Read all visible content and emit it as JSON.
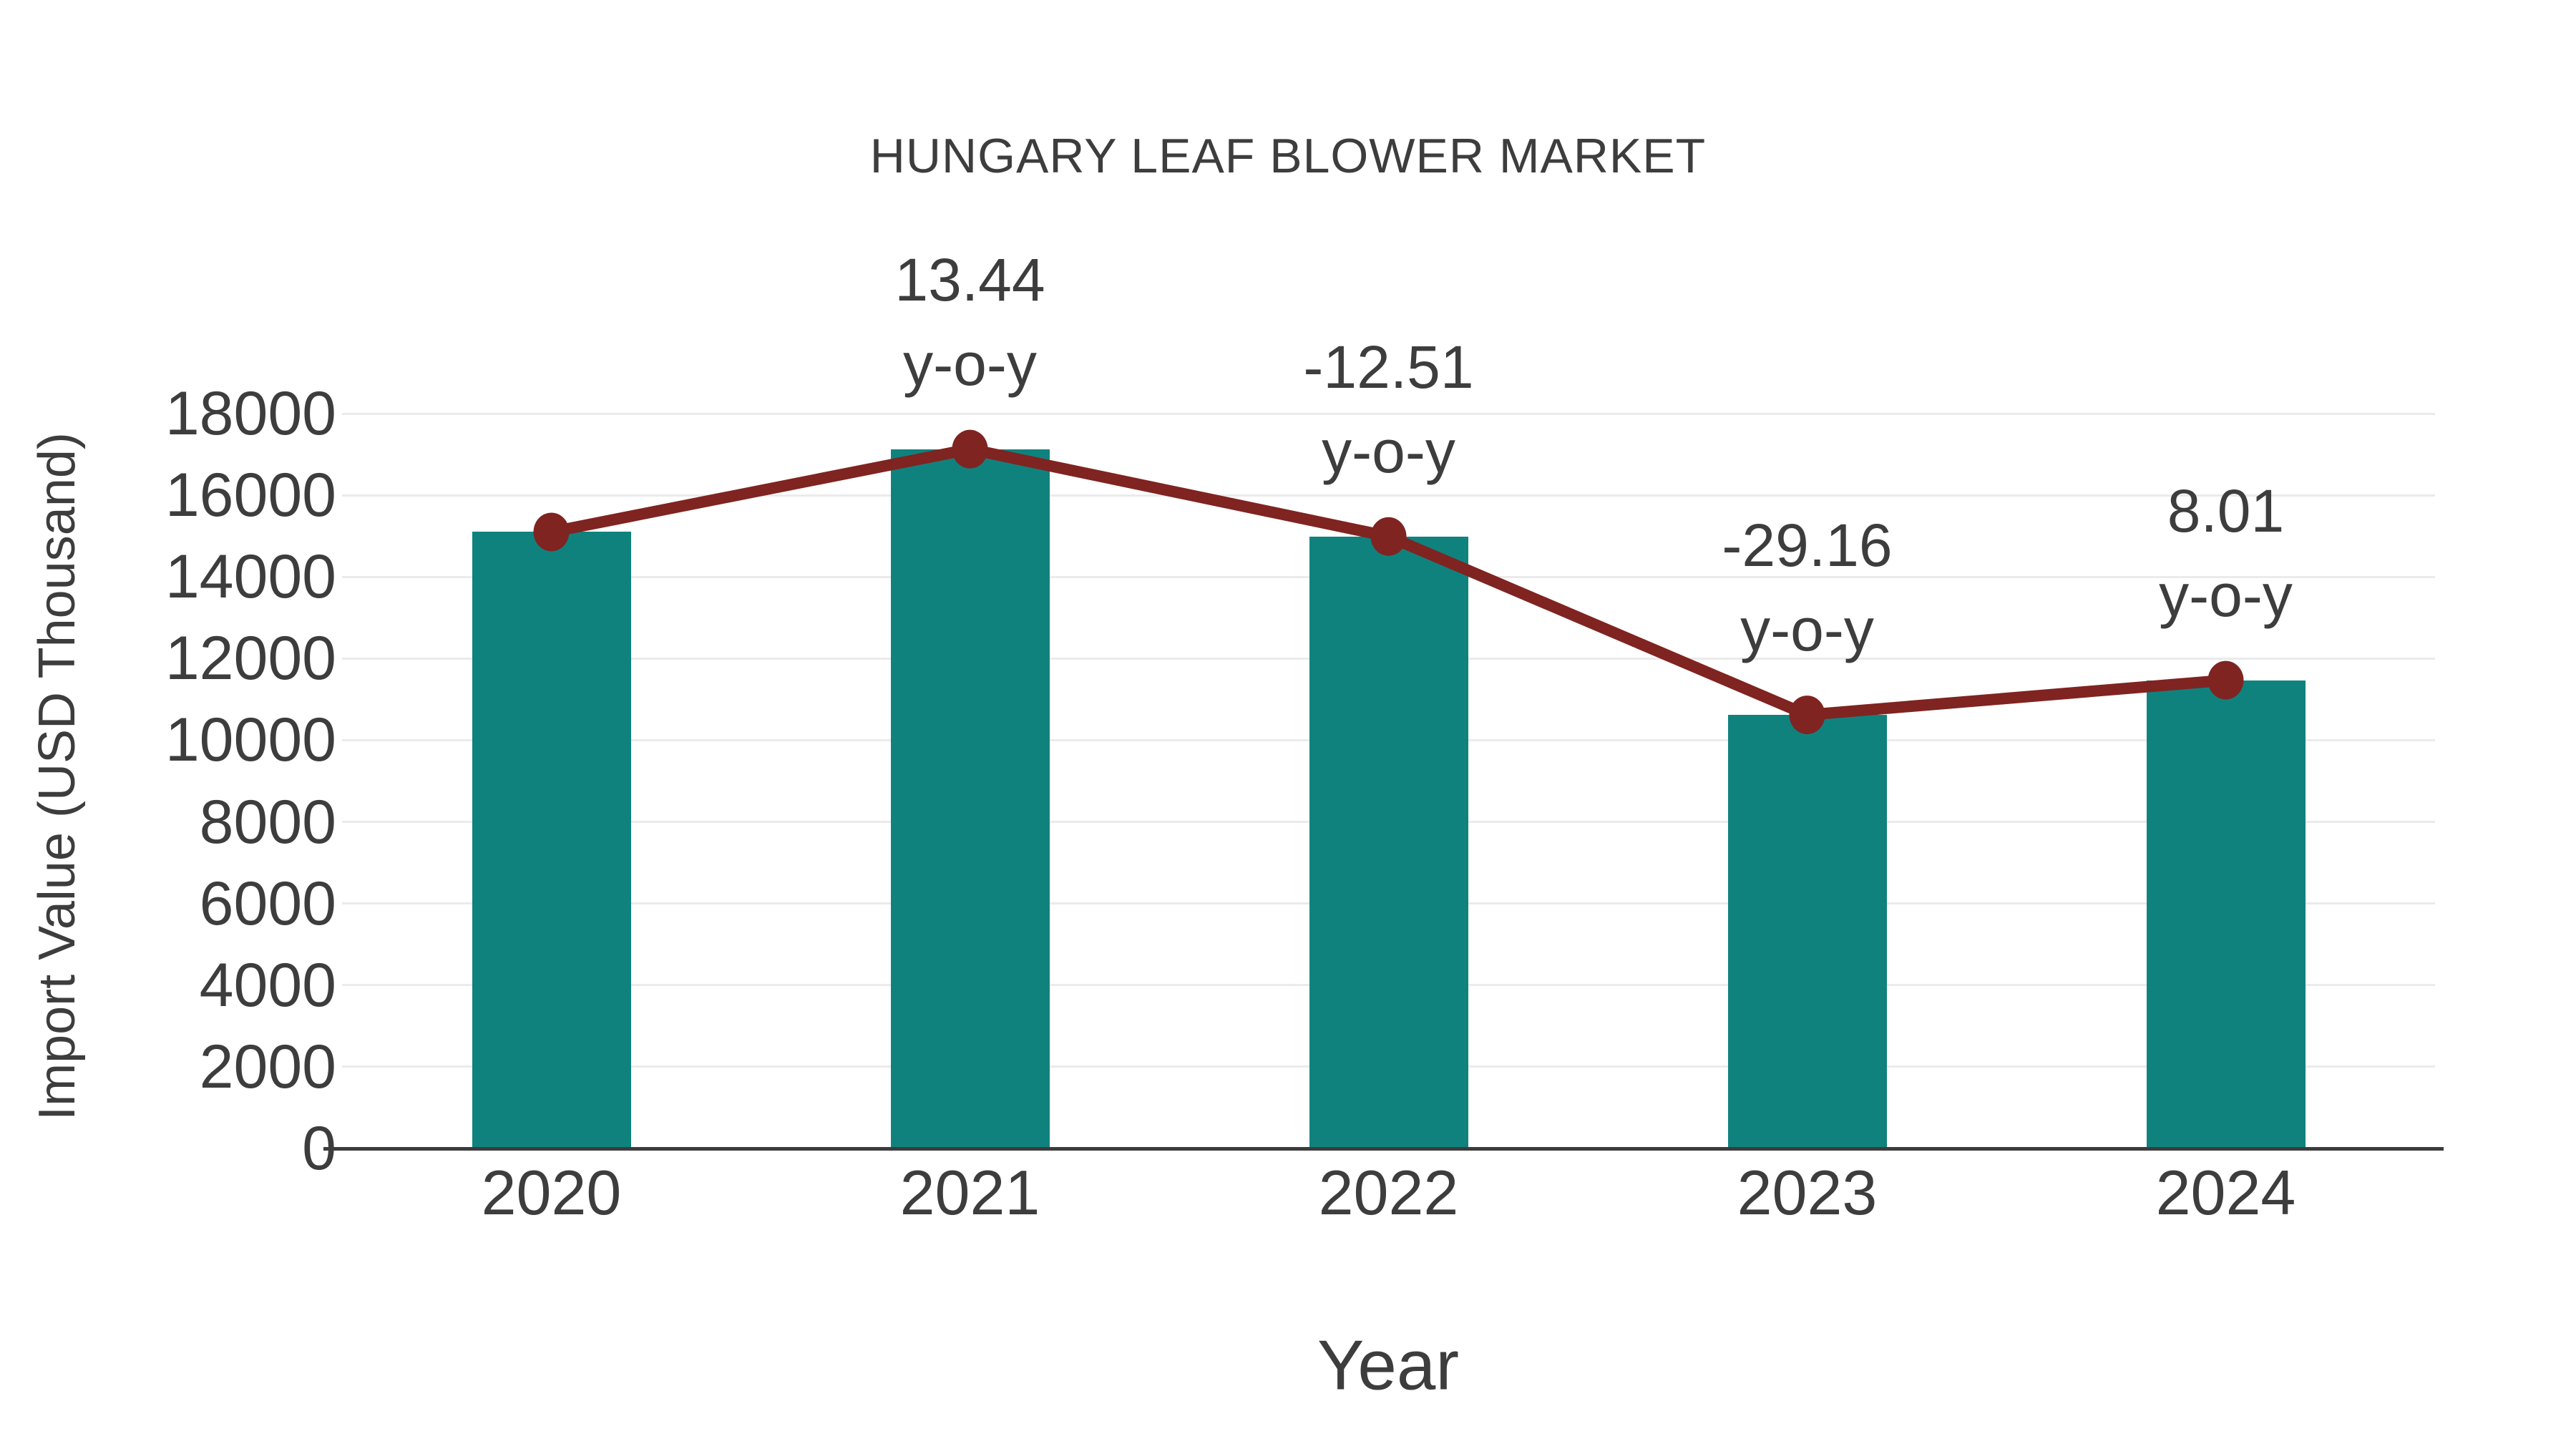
{
  "chart_data": {
    "type": "bar",
    "title": "HUNGARY LEAF BLOWER MARKET",
    "xlabel": "Year",
    "ylabel": "Import Value (USD Thousand)",
    "categories": [
      "2020",
      "2021",
      "2022",
      "2023",
      "2024"
    ],
    "series": [
      {
        "name": "Import Value (USD Thousand) bars",
        "type": "bar",
        "color": "#10827E",
        "values": [
          15100,
          17130,
          14990,
          10620,
          11470
        ]
      },
      {
        "name": "Import Value trend line",
        "type": "line",
        "color": "#7F2421",
        "values": [
          15100,
          17130,
          14990,
          10620,
          11470
        ]
      }
    ],
    "annotations": [
      {
        "category": "2021",
        "value_text": "13.44",
        "suffix_text": "y-o-y"
      },
      {
        "category": "2022",
        "value_text": "-12.51",
        "suffix_text": "y-o-y"
      },
      {
        "category": "2023",
        "value_text": "-29.16",
        "suffix_text": "y-o-y"
      },
      {
        "category": "2024",
        "value_text": "8.01",
        "suffix_text": "y-o-y"
      }
    ],
    "ylim": [
      0,
      18000
    ],
    "ytick_step": 2000,
    "grid": true,
    "legend": false,
    "colors": {
      "background": "#FFFFFF",
      "text": "#3D3D3D",
      "gridline": "#EBEBEB",
      "axis_line": "#3C3C3C",
      "bar": "#10827E",
      "line": "#7F2421"
    }
  }
}
